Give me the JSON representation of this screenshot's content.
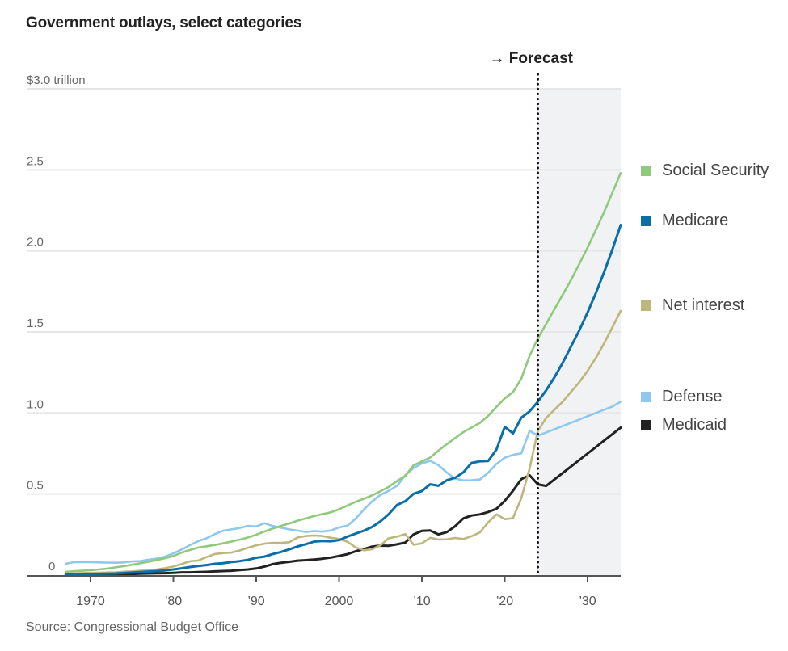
{
  "title": "Government outlays, select categories",
  "source": "Source: Congressional Budget Office",
  "chart_data": {
    "type": "line",
    "title": "Government outlays, select categories",
    "xlabel": "",
    "ylabel": "$ trillion",
    "xlim": [
      1967,
      2034
    ],
    "ylim": [
      0,
      3.0
    ],
    "yticks": [
      {
        "value": 0,
        "label": "0"
      },
      {
        "value": 0.5,
        "label": "0.5"
      },
      {
        "value": 1.0,
        "label": "1.0"
      },
      {
        "value": 1.5,
        "label": "1.5"
      },
      {
        "value": 2.0,
        "label": "2.0"
      },
      {
        "value": 2.5,
        "label": "2.5"
      },
      {
        "value": 3.0,
        "label": "$3.0 trillion"
      }
    ],
    "xticks": [
      {
        "value": 1970,
        "label": "1970"
      },
      {
        "value": 1980,
        "label": "’80"
      },
      {
        "value": 1990,
        "label": "’90"
      },
      {
        "value": 2000,
        "label": "2000"
      },
      {
        "value": 2010,
        "label": "’10"
      },
      {
        "value": 2020,
        "label": "’20"
      },
      {
        "value": 2030,
        "label": "’30"
      }
    ],
    "grid": true,
    "forecast": {
      "start_year": 2024,
      "label": "→ Forecast"
    },
    "legend_placement": "right",
    "x": [
      1967,
      1968,
      1969,
      1970,
      1971,
      1972,
      1973,
      1974,
      1975,
      1976,
      1977,
      1978,
      1979,
      1980,
      1981,
      1982,
      1983,
      1984,
      1985,
      1986,
      1987,
      1988,
      1989,
      1990,
      1991,
      1992,
      1993,
      1994,
      1995,
      1996,
      1997,
      1998,
      1999,
      2000,
      2001,
      2002,
      2003,
      2004,
      2005,
      2006,
      2007,
      2008,
      2009,
      2010,
      2011,
      2012,
      2013,
      2014,
      2015,
      2016,
      2017,
      2018,
      2019,
      2020,
      2021,
      2022,
      2023,
      2024,
      2025,
      2026,
      2027,
      2028,
      2029,
      2030,
      2031,
      2032,
      2033,
      2034
    ],
    "series": [
      {
        "name": "Social Security",
        "color": "#8fc97c",
        "values": [
          0.02,
          0.025,
          0.027,
          0.03,
          0.035,
          0.04,
          0.048,
          0.055,
          0.064,
          0.073,
          0.083,
          0.093,
          0.104,
          0.118,
          0.139,
          0.155,
          0.17,
          0.178,
          0.186,
          0.196,
          0.207,
          0.219,
          0.232,
          0.249,
          0.269,
          0.287,
          0.304,
          0.319,
          0.336,
          0.35,
          0.365,
          0.376,
          0.387,
          0.406,
          0.429,
          0.452,
          0.471,
          0.492,
          0.518,
          0.544,
          0.581,
          0.612,
          0.678,
          0.701,
          0.725,
          0.768,
          0.808,
          0.845,
          0.882,
          0.91,
          0.939,
          0.982,
          1.038,
          1.09,
          1.129,
          1.212,
          1.353,
          1.46,
          1.55,
          1.64,
          1.73,
          1.82,
          1.92,
          2.02,
          2.13,
          2.24,
          2.36,
          2.48
        ]
      },
      {
        "name": "Medicare",
        "color": "#0a6fa6",
        "values": [
          0.003,
          0.005,
          0.006,
          0.007,
          0.008,
          0.009,
          0.01,
          0.013,
          0.016,
          0.019,
          0.022,
          0.025,
          0.029,
          0.035,
          0.042,
          0.05,
          0.056,
          0.062,
          0.07,
          0.074,
          0.08,
          0.086,
          0.094,
          0.107,
          0.114,
          0.13,
          0.143,
          0.159,
          0.177,
          0.191,
          0.207,
          0.211,
          0.209,
          0.216,
          0.237,
          0.256,
          0.274,
          0.297,
          0.332,
          0.376,
          0.433,
          0.456,
          0.502,
          0.519,
          0.56,
          0.551,
          0.585,
          0.6,
          0.634,
          0.692,
          0.702,
          0.704,
          0.775,
          0.914,
          0.874,
          0.971,
          1.01,
          1.07,
          1.14,
          1.22,
          1.31,
          1.41,
          1.51,
          1.62,
          1.74,
          1.87,
          2.01,
          2.16
        ]
      },
      {
        "name": "Net interest",
        "color": "#bdb77d",
        "values": [
          0.01,
          0.011,
          0.013,
          0.014,
          0.015,
          0.016,
          0.017,
          0.021,
          0.023,
          0.027,
          0.03,
          0.035,
          0.043,
          0.053,
          0.069,
          0.085,
          0.09,
          0.111,
          0.13,
          0.136,
          0.139,
          0.152,
          0.169,
          0.184,
          0.194,
          0.199,
          0.199,
          0.203,
          0.232,
          0.241,
          0.244,
          0.241,
          0.23,
          0.223,
          0.206,
          0.171,
          0.153,
          0.16,
          0.184,
          0.227,
          0.237,
          0.253,
          0.187,
          0.196,
          0.23,
          0.22,
          0.221,
          0.229,
          0.223,
          0.24,
          0.263,
          0.325,
          0.375,
          0.345,
          0.352,
          0.475,
          0.658,
          0.89,
          0.97,
          1.02,
          1.07,
          1.13,
          1.19,
          1.26,
          1.34,
          1.43,
          1.53,
          1.63
        ]
      },
      {
        "name": "Defense",
        "color": "#8ec8ec",
        "values": [
          0.07,
          0.08,
          0.08,
          0.08,
          0.078,
          0.077,
          0.076,
          0.078,
          0.084,
          0.086,
          0.095,
          0.102,
          0.114,
          0.134,
          0.158,
          0.185,
          0.21,
          0.227,
          0.253,
          0.273,
          0.282,
          0.29,
          0.304,
          0.3,
          0.32,
          0.303,
          0.292,
          0.282,
          0.274,
          0.266,
          0.272,
          0.268,
          0.275,
          0.294,
          0.305,
          0.348,
          0.405,
          0.455,
          0.495,
          0.52,
          0.551,
          0.616,
          0.661,
          0.689,
          0.705,
          0.678,
          0.633,
          0.596,
          0.584,
          0.585,
          0.59,
          0.631,
          0.686,
          0.724,
          0.742,
          0.751,
          0.89,
          0.86,
          0.88,
          0.9,
          0.92,
          0.94,
          0.96,
          0.98,
          1.0,
          1.02,
          1.04,
          1.07
        ]
      },
      {
        "name": "Medicaid",
        "color": "#222222",
        "values": [
          0.001,
          0.002,
          0.003,
          0.003,
          0.003,
          0.004,
          0.005,
          0.006,
          0.007,
          0.009,
          0.01,
          0.011,
          0.012,
          0.014,
          0.017,
          0.017,
          0.019,
          0.02,
          0.023,
          0.025,
          0.027,
          0.031,
          0.035,
          0.041,
          0.053,
          0.068,
          0.076,
          0.082,
          0.089,
          0.092,
          0.096,
          0.101,
          0.108,
          0.118,
          0.129,
          0.147,
          0.161,
          0.176,
          0.182,
          0.181,
          0.19,
          0.201,
          0.251,
          0.273,
          0.275,
          0.251,
          0.265,
          0.301,
          0.35,
          0.368,
          0.375,
          0.389,
          0.409,
          0.458,
          0.521,
          0.592,
          0.616,
          0.56,
          0.55,
          0.59,
          0.63,
          0.67,
          0.71,
          0.75,
          0.79,
          0.83,
          0.87,
          0.91
        ]
      }
    ]
  },
  "legend": [
    {
      "label": "Social Security",
      "color": "#8fc97c"
    },
    {
      "label": "Medicare",
      "color": "#0a6fa6"
    },
    {
      "label": "Net interest",
      "color": "#bdb77d"
    },
    {
      "label": "Defense",
      "color": "#8ec8ec"
    },
    {
      "label": "Medicaid",
      "color": "#222222"
    }
  ]
}
